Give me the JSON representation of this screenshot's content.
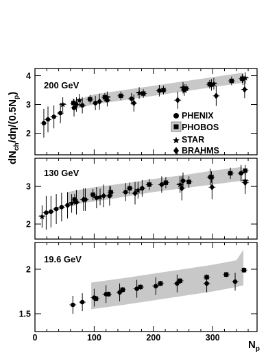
{
  "chart_data": {
    "type": "scatter",
    "title": "",
    "xlabel": "N",
    "xlabel_sub": "p",
    "ylabel": "dN",
    "ylabel_sub1": "ch",
    "ylabel_mid": "/dη/(0.5N",
    "ylabel_sub2": "p",
    "ylabel_end": ")",
    "xlim": [
      0,
      375
    ],
    "x_ticks": [
      0,
      100,
      200,
      300
    ],
    "legend": {
      "placement": "right, inside top panel",
      "entries": [
        {
          "name": "PHENIX",
          "marker": "circle"
        },
        {
          "name": "PHOBOS",
          "marker": "square"
        },
        {
          "name": "STAR",
          "marker": "star"
        },
        {
          "name": "BRAHMS",
          "marker": "diamond"
        }
      ],
      "band_color": "#c8c8c8"
    },
    "panels": [
      {
        "label": "200 GeV",
        "ylim": [
          1.25,
          4.25
        ],
        "y_ticks": [
          2,
          3,
          4
        ],
        "band": {
          "x": [
            70,
            100,
            150,
            200,
            250,
            300,
            350
          ],
          "lower": [
            2.85,
            3.0,
            3.15,
            3.3,
            3.45,
            3.6,
            3.75
          ],
          "upper": [
            3.15,
            3.35,
            3.5,
            3.65,
            3.8,
            3.95,
            4.1
          ]
        },
        "series": [
          {
            "name": "PHENIX",
            "marker": "circle",
            "points": [
              {
                "x": 15,
                "y": 2.35,
                "ey": 0.5
              },
              {
                "x": 22,
                "y": 2.48,
                "ey": 0.45
              },
              {
                "x": 32,
                "y": 2.57,
                "ey": 0.4
              },
              {
                "x": 43,
                "y": 2.7,
                "ey": 0.35
              },
              {
                "x": 66,
                "y": 2.88,
                "ey": 0.3
              },
              {
                "x": 80,
                "y": 2.97,
                "ey": 0.28
              },
              {
                "x": 102,
                "y": 3.05,
                "ey": 0.25
              },
              {
                "x": 122,
                "y": 3.15,
                "ey": 0.22
              },
              {
                "x": 163,
                "y": 3.2,
                "ey": 0.2
              },
              {
                "x": 210,
                "y": 3.48,
                "ey": 0.2
              },
              {
                "x": 252,
                "y": 3.5,
                "ey": 0.2
              },
              {
                "x": 298,
                "y": 3.68,
                "ey": 0.2
              },
              {
                "x": 351,
                "y": 3.88,
                "ey": 0.2
              }
            ]
          },
          {
            "name": "PHOBOS",
            "marker": "square",
            "points": [
              {
                "x": 65,
                "y": 3.05,
                "ey": 0.15
              },
              {
                "x": 93,
                "y": 3.18,
                "ey": 0.15
              },
              {
                "x": 118,
                "y": 3.25,
                "ey": 0.15
              },
              {
                "x": 145,
                "y": 3.3,
                "ey": 0.15
              },
              {
                "x": 183,
                "y": 3.38,
                "ey": 0.15
              },
              {
                "x": 217,
                "y": 3.5,
                "ey": 0.15
              },
              {
                "x": 255,
                "y": 3.55,
                "ey": 0.15
              },
              {
                "x": 295,
                "y": 3.7,
                "ey": 0.15
              },
              {
                "x": 332,
                "y": 3.82,
                "ey": 0.15
              },
              {
                "x": 350,
                "y": 3.9,
                "ey": 0.15
              }
            ]
          },
          {
            "name": "STAR",
            "marker": "star",
            "points": [
              {
                "x": 47,
                "y": 3.0,
                "ey": 0.25
              },
              {
                "x": 75,
                "y": 3.15,
                "ey": 0.22
              },
              {
                "x": 122,
                "y": 3.25,
                "ey": 0.2
              },
              {
                "x": 176,
                "y": 3.4,
                "ey": 0.2
              },
              {
                "x": 250,
                "y": 3.58,
                "ey": 0.2
              },
              {
                "x": 302,
                "y": 3.72,
                "ey": 0.2
              },
              {
                "x": 355,
                "y": 3.92,
                "ey": 0.2
              }
            ]
          },
          {
            "name": "BRAHMS",
            "marker": "diamond",
            "points": [
              {
                "x": 70,
                "y": 3.0,
                "ey": 0.25
              },
              {
                "x": 109,
                "y": 3.1,
                "ey": 0.28
              },
              {
                "x": 167,
                "y": 3.05,
                "ey": 0.3
              },
              {
                "x": 241,
                "y": 3.15,
                "ey": 0.3
              },
              {
                "x": 306,
                "y": 3.3,
                "ey": 0.35
              },
              {
                "x": 354,
                "y": 3.52,
                "ey": 0.3
              }
            ]
          }
        ]
      },
      {
        "label": "130 GeV",
        "ylim": [
          1.6,
          3.75
        ],
        "y_ticks": [
          2,
          3
        ],
        "band": {
          "x": [
            55,
            100,
            150,
            200,
            250,
            300,
            350
          ],
          "lower": [
            2.5,
            2.6,
            2.72,
            2.85,
            2.95,
            3.05,
            3.15
          ],
          "upper": [
            2.85,
            2.98,
            3.08,
            3.2,
            3.3,
            3.42,
            3.52
          ]
        },
        "series": [
          {
            "name": "PHENIX",
            "marker": "circle",
            "points": [
              {
                "x": 19,
                "y": 2.3,
                "ey": 0.45
              },
              {
                "x": 27,
                "y": 2.33,
                "ey": 0.42
              },
              {
                "x": 36,
                "y": 2.4,
                "ey": 0.4
              },
              {
                "x": 45,
                "y": 2.45,
                "ey": 0.38
              },
              {
                "x": 55,
                "y": 2.5,
                "ey": 0.35
              },
              {
                "x": 70,
                "y": 2.58,
                "ey": 0.33
              },
              {
                "x": 85,
                "y": 2.65,
                "ey": 0.3
              },
              {
                "x": 104,
                "y": 2.7,
                "ey": 0.28
              },
              {
                "x": 126,
                "y": 2.75,
                "ey": 0.26
              },
              {
                "x": 153,
                "y": 2.85,
                "ey": 0.24
              },
              {
                "x": 181,
                "y": 2.95,
                "ey": 0.22
              },
              {
                "x": 214,
                "y": 3.05,
                "ey": 0.22
              },
              {
                "x": 250,
                "y": 3.15,
                "ey": 0.22
              },
              {
                "x": 296,
                "y": 3.25,
                "ey": 0.22
              },
              {
                "x": 348,
                "y": 3.35,
                "ey": 0.22
              }
            ]
          },
          {
            "name": "PHOBOS",
            "marker": "square",
            "points": [
              {
                "x": 67,
                "y": 2.65,
                "ey": 0.15
              },
              {
                "x": 98,
                "y": 2.78,
                "ey": 0.15
              },
              {
                "x": 128,
                "y": 2.85,
                "ey": 0.15
              },
              {
                "x": 160,
                "y": 2.95,
                "ey": 0.15
              },
              {
                "x": 193,
                "y": 3.05,
                "ey": 0.15
              },
              {
                "x": 221,
                "y": 3.1,
                "ey": 0.15
              },
              {
                "x": 260,
                "y": 3.12,
                "ey": 0.15
              },
              {
                "x": 298,
                "y": 3.25,
                "ey": 0.15
              },
              {
                "x": 330,
                "y": 3.35,
                "ey": 0.15
              },
              {
                "x": 355,
                "y": 3.42,
                "ey": 0.15
              }
            ]
          },
          {
            "name": "STAR",
            "marker": "star",
            "points": [
              {
                "x": 12,
                "y": 2.2,
                "ey": 0.3
              },
              {
                "x": 62,
                "y": 2.55,
                "ey": 0.25
              },
              {
                "x": 110,
                "y": 2.72,
                "ey": 0.22
              },
              {
                "x": 174,
                "y": 2.9,
                "ey": 0.22
              },
              {
                "x": 245,
                "y": 3.05,
                "ey": 0.22
              },
              {
                "x": 355,
                "y": 3.15,
                "ey": 0.22
              }
            ]
          },
          {
            "name": "BRAHMS",
            "marker": "diamond",
            "points": [
              {
                "x": 82,
                "y": 2.65,
                "ey": 0.3
              },
              {
                "x": 116,
                "y": 2.75,
                "ey": 0.3
              },
              {
                "x": 169,
                "y": 2.82,
                "ey": 0.3
              },
              {
                "x": 248,
                "y": 2.95,
                "ey": 0.32
              },
              {
                "x": 299,
                "y": 2.98,
                "ey": 0.32
              },
              {
                "x": 355,
                "y": 3.1,
                "ey": 0.3
              }
            ]
          }
        ]
      },
      {
        "label": "19.6 GeV",
        "ylim": [
          1.3,
          2.3
        ],
        "y_ticks": [
          1.5,
          2
        ],
        "band": {
          "x": [
            95,
            150,
            200,
            250,
            300,
            340,
            352
          ],
          "lower": [
            1.55,
            1.6,
            1.65,
            1.7,
            1.75,
            1.8,
            1.82
          ],
          "upper": [
            1.85,
            1.9,
            1.95,
            2.0,
            2.05,
            2.1,
            2.22
          ]
        },
        "series": [
          {
            "name": "PHENIX",
            "marker": "circle",
            "points": [
              {
                "x": 64,
                "y": 1.6,
                "ey": 0.1
              },
              {
                "x": 80,
                "y": 1.63,
                "ey": 0.1
              },
              {
                "x": 100,
                "y": 1.68,
                "ey": 0.1
              },
              {
                "x": 120,
                "y": 1.72,
                "ey": 0.1
              },
              {
                "x": 143,
                "y": 1.74,
                "ey": 0.1
              },
              {
                "x": 172,
                "y": 1.78,
                "ey": 0.1
              },
              {
                "x": 204,
                "y": 1.81,
                "ey": 0.1
              },
              {
                "x": 240,
                "y": 1.84,
                "ey": 0.1
              },
              {
                "x": 290,
                "y": 1.84,
                "ey": 0.1
              },
              {
                "x": 338,
                "y": 1.86,
                "ey": 0.1
              }
            ]
          },
          {
            "name": "PHOBOS",
            "marker": "square",
            "points": [
              {
                "x": 103,
                "y": 1.67,
                "ey": 0.03
              },
              {
                "x": 124,
                "y": 1.72,
                "ey": 0.03
              },
              {
                "x": 148,
                "y": 1.77,
                "ey": 0.03
              },
              {
                "x": 178,
                "y": 1.8,
                "ey": 0.03
              },
              {
                "x": 212,
                "y": 1.84,
                "ey": 0.03
              },
              {
                "x": 245,
                "y": 1.87,
                "ey": 0.03
              },
              {
                "x": 290,
                "y": 1.91,
                "ey": 0.03
              },
              {
                "x": 323,
                "y": 1.94,
                "ey": 0.03
              },
              {
                "x": 353,
                "y": 1.99,
                "ey": 0.03
              }
            ]
          }
        ]
      }
    ]
  }
}
